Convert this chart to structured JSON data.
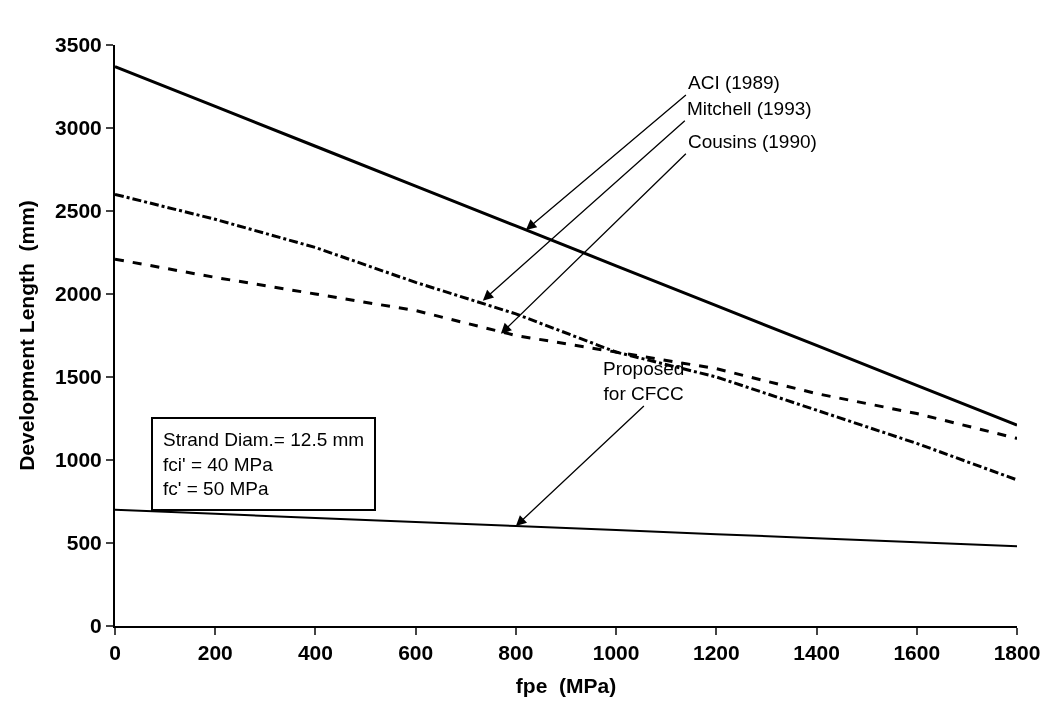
{
  "chart_data": {
    "type": "line",
    "xlabel": "fpe  (MPa)",
    "ylabel": "Development Length  (mm)",
    "x": [
      0,
      200,
      400,
      600,
      800,
      1000,
      1200,
      1400,
      1600,
      1800
    ],
    "series": [
      {
        "color": "#000000",
        "line_style": "solid",
        "values": [
          3370,
          3130,
          2890,
          2650,
          2410,
          2170,
          1930,
          1690,
          1450,
          1210
        ]
      },
      {
        "color": "#000000",
        "line_style": "dotted",
        "values": [
          2600,
          2450,
          2280,
          2070,
          1880,
          1650,
          1500,
          1300,
          1100,
          880
        ]
      },
      {
        "color": "#000000",
        "line_style": "dashed",
        "values": [
          2210,
          2100,
          2000,
          1900,
          1750,
          1650,
          1550,
          1400,
          1280,
          1130
        ]
      },
      {
        "color": "#000000",
        "line_style": "solid",
        "values": [
          700,
          676,
          651,
          627,
          602,
          578,
          553,
          529,
          504,
          480
        ]
      }
    ],
    "xlim": [
      0,
      1800
    ],
    "xticks": [
      0,
      200,
      400,
      600,
      800,
      1000,
      1200,
      1400,
      1600,
      1800
    ],
    "ylim": [
      0,
      3500
    ],
    "yticks": [
      0,
      500,
      1000,
      1500,
      2000,
      2500,
      3000,
      3500
    ],
    "legend": false,
    "marker": "none",
    "annotations": [
      {
        "text": "ACI (1989)",
        "x": 820,
        "y": 2386
      },
      {
        "text": "Mitchell (1993)",
        "x": 734,
        "y": 1960
      },
      {
        "text": "Cousins (1990)",
        "x": 770,
        "y": 1760
      },
      {
        "text": "Proposed\nfor CFCC",
        "x": 800,
        "y": 602
      },
      "Strand Diam.= 12.5 mm\nfci' = 40 MPa\nfc' = 50 MPa"
    ]
  }
}
